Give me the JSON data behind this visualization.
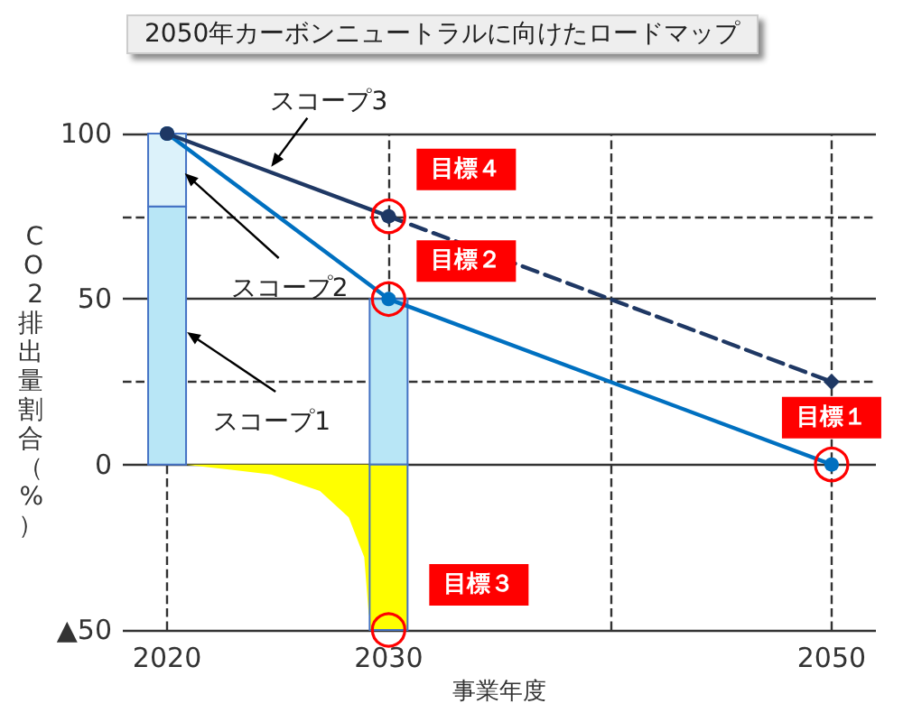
{
  "chart_data": {
    "type": "line",
    "title": "2050年カーボンニュートラルに向けたロードマップ",
    "xlabel": "事業年度",
    "ylabel": "CO2排出量割合（%）",
    "xlim": [
      2018,
      2052
    ],
    "xticks": [
      2020,
      2030,
      {
        "value": 2040,
        "label": null
      },
      2050
    ],
    "ylim": [
      -50,
      100
    ],
    "yticks": [
      {
        "value": -50,
        "label": "▲50"
      },
      0,
      {
        "value": 25,
        "label": null
      },
      50,
      {
        "value": 75,
        "label": null
      },
      100
    ],
    "grid": true,
    "stacked": true,
    "series": [
      {
        "type": "area",
        "color": "#ffff00",
        "x": [
          2020.8,
          2024.7,
          2026.9,
          2028.2,
          2028.9,
          2029.1,
          2029.3
        ],
        "values": [
          0,
          -3,
          -8,
          -16,
          -28,
          -45,
          -50
        ],
        "marker": "none"
      },
      {
        "type": "bar",
        "color": "#b8e6f6",
        "x": [
          2020,
          2030
        ],
        "values": [
          78,
          50
        ]
      },
      {
        "type": "bar",
        "color": "#dcf2fa",
        "x": [
          2020
        ],
        "values": [
          22
        ]
      },
      {
        "type": "bar",
        "color": "#ffff00",
        "x": [
          2030
        ],
        "values": [
          -50
        ]
      },
      {
        "color": "#0070c0",
        "x": [
          2020,
          2030,
          2050
        ],
        "values": [
          100,
          50,
          0
        ],
        "marker": "circle",
        "line_style": "solid"
      },
      {
        "color": "#1f3864",
        "x": [
          2020,
          2030
        ],
        "values": [
          100,
          75
        ],
        "marker": "circle",
        "line_style": "solid"
      },
      {
        "color": "#1f3864",
        "x": [
          2030,
          2050
        ],
        "values": [
          75,
          25
        ],
        "marker": "diamond",
        "line_style": "dashed"
      }
    ],
    "annotations": [
      {
        "text": "スコープ3",
        "x": 2024.7,
        "y": 90
      },
      {
        "text": "スコープ2",
        "x": 2020.8,
        "y": 88
      },
      {
        "text": "スコープ1",
        "x": 2020.9,
        "y": 40
      },
      {
        "text": "目標４",
        "x": 2030,
        "y": 75
      },
      {
        "text": "目標２",
        "x": 2030,
        "y": 50
      },
      {
        "text": "目標３",
        "x": 2030,
        "y": -50
      },
      {
        "text": "目標１",
        "x": 2050,
        "y": 0
      }
    ]
  }
}
